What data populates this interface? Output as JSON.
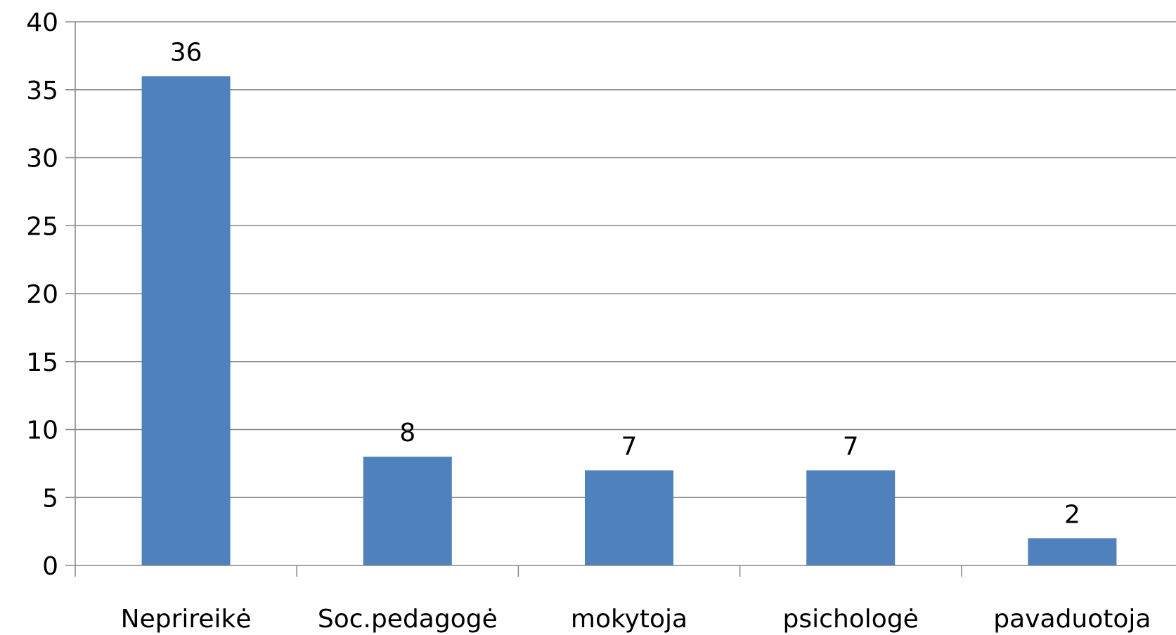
{
  "chart_data": {
    "type": "bar",
    "categories": [
      "Neprireikė",
      "Soc.pedagogė",
      "mokytoja",
      "psichologė",
      "pavaduotoja"
    ],
    "values": [
      36,
      8,
      7,
      7,
      2
    ],
    "title": "",
    "xlabel": "",
    "ylabel": "",
    "ylim": [
      0,
      40
    ],
    "yticks": [
      0,
      5,
      10,
      15,
      20,
      25,
      30,
      35,
      40
    ],
    "grid": true,
    "data_labels": true,
    "legend": "none",
    "bar_color": "#4F81BD"
  }
}
